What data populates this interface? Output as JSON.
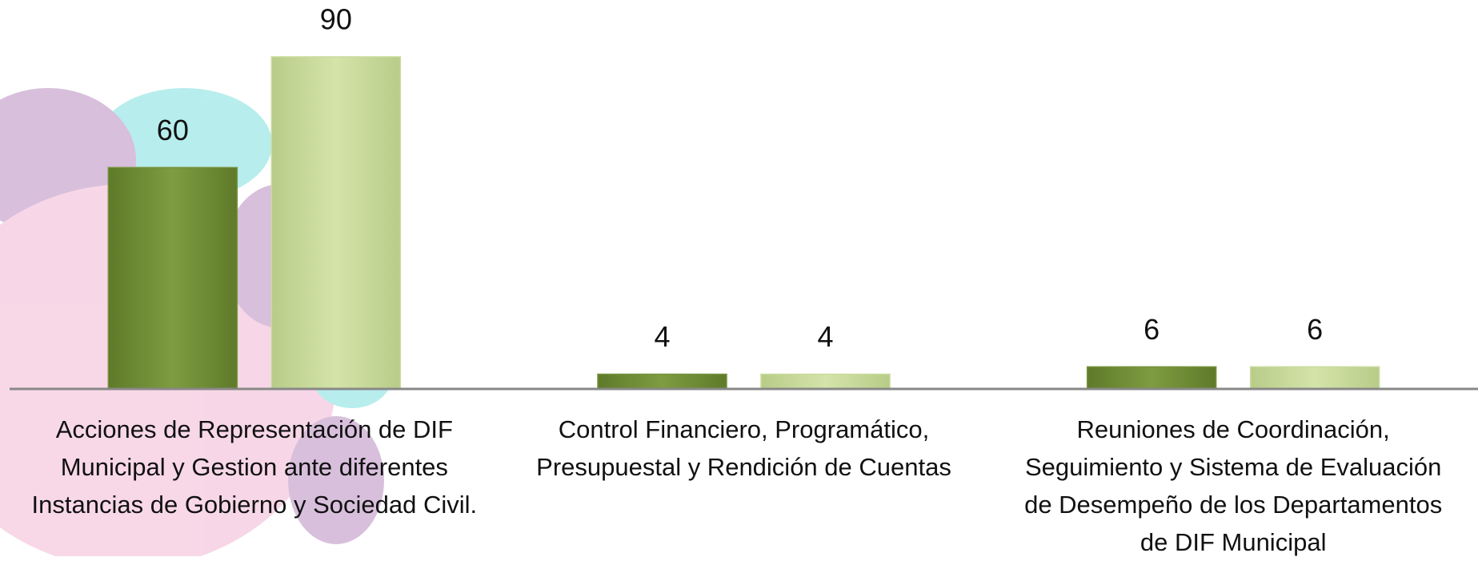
{
  "chart_data": {
    "type": "bar",
    "categories": [
      "Acciones de Representación de DIF\nMunicipal y Gestion ante diferentes\nInstancias de Gobierno y Sociedad Civil.",
      "Control Financiero, Programático,\nPresupuestal y Rendición de Cuentas",
      "Reuniones de Coordinación,\nSeguimiento y Sistema de Evaluación\nde Desempeño de los Departamentos\nde DIF Municipal"
    ],
    "series": [
      {
        "color": "#77933c",
        "values": [
          60,
          4,
          6
        ]
      },
      {
        "color": "#c9dc9c",
        "values": [
          90,
          4,
          6
        ]
      }
    ],
    "ylim": [
      0,
      90
    ]
  }
}
